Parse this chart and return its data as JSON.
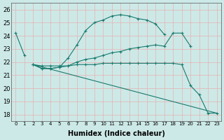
{
  "xlabel": "Humidex (Indice chaleur)",
  "bg_color": "#cce9e7",
  "grid_color": "#b0d5d3",
  "line_color": "#1a7a6e",
  "xlim": [
    -0.5,
    23.5
  ],
  "ylim": [
    17.5,
    26.5
  ],
  "yticks": [
    18,
    19,
    20,
    21,
    22,
    23,
    24,
    25,
    26
  ],
  "xticks": [
    0,
    1,
    2,
    3,
    4,
    5,
    6,
    7,
    8,
    9,
    10,
    11,
    12,
    13,
    14,
    15,
    16,
    17,
    18,
    19,
    20,
    21,
    22,
    23
  ],
  "series": [
    {
      "x": [
        0,
        1
      ],
      "y": [
        24.2,
        22.5
      ],
      "marker": true
    },
    {
      "x": [
        2,
        3,
        4,
        5,
        6,
        7,
        8,
        9,
        10,
        11,
        12,
        13,
        14,
        15,
        16,
        17
      ],
      "y": [
        21.8,
        21.5,
        21.5,
        21.6,
        22.3,
        23.3,
        24.4,
        25.0,
        25.2,
        25.5,
        25.6,
        25.5,
        25.3,
        25.2,
        24.9,
        24.1
      ],
      "marker": true
    },
    {
      "x": [
        2,
        3,
        4,
        5,
        6,
        7,
        8,
        9,
        10,
        11,
        12,
        13,
        14,
        15,
        16,
        17,
        18,
        19,
        20
      ],
      "y": [
        21.8,
        21.5,
        21.5,
        21.6,
        21.7,
        22.0,
        22.2,
        22.3,
        22.5,
        22.7,
        22.8,
        23.0,
        23.1,
        23.2,
        23.3,
        23.2,
        24.2,
        24.2,
        23.2
      ],
      "marker": true
    },
    {
      "x": [
        2,
        3,
        4,
        5,
        6,
        7,
        8,
        9,
        10,
        11,
        12,
        13,
        14,
        15,
        16,
        17,
        18,
        19,
        20,
        21,
        22,
        23
      ],
      "y": [
        21.8,
        21.7,
        21.7,
        21.7,
        21.7,
        21.8,
        21.8,
        21.8,
        21.9,
        21.9,
        21.9,
        21.9,
        21.9,
        21.9,
        21.9,
        21.9,
        21.9,
        21.8,
        20.2,
        19.5,
        18.1,
        18.1
      ],
      "marker": true
    },
    {
      "x": [
        2,
        23
      ],
      "y": [
        21.8,
        18.1
      ],
      "marker": false
    }
  ]
}
